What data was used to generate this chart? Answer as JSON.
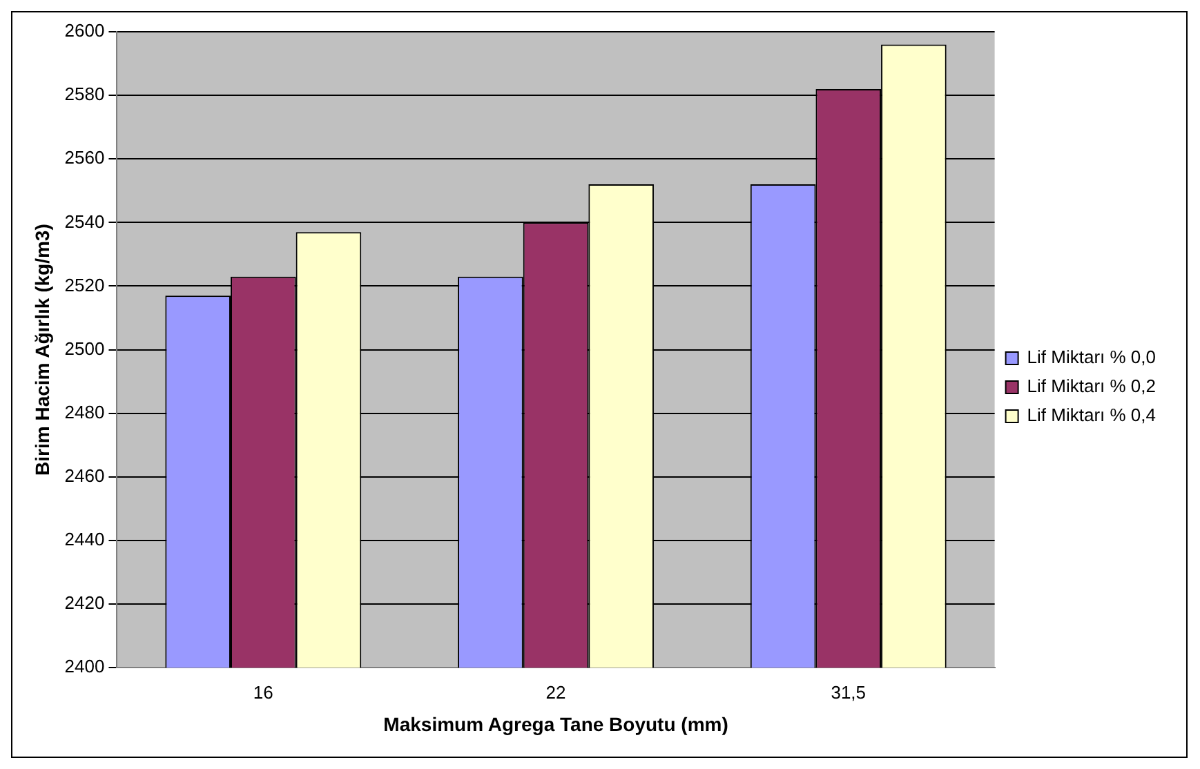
{
  "chart_data": {
    "type": "bar",
    "xlabel": "Maksimum Agrega Tane Boyutu (mm)",
    "ylabel": "Birim Hacim Ağırlık (kg/m3)",
    "categories": [
      "16",
      "22",
      "31,5"
    ],
    "series": [
      {
        "name": "Lif Miktarı % 0,0",
        "color": "#9999ff",
        "values": [
          2517,
          2523,
          2552
        ]
      },
      {
        "name": "Lif Miktarı % 0,2",
        "color": "#993366",
        "values": [
          2523,
          2540,
          2582
        ]
      },
      {
        "name": "Lif Miktarı % 0,4",
        "color": "#ffffcc",
        "values": [
          2537,
          2552,
          2596
        ]
      }
    ],
    "ylim": [
      2400,
      2600
    ],
    "yticks": [
      2400,
      2420,
      2440,
      2460,
      2480,
      2500,
      2520,
      2540,
      2560,
      2580,
      2600
    ],
    "grid": "y",
    "legend": "right"
  }
}
